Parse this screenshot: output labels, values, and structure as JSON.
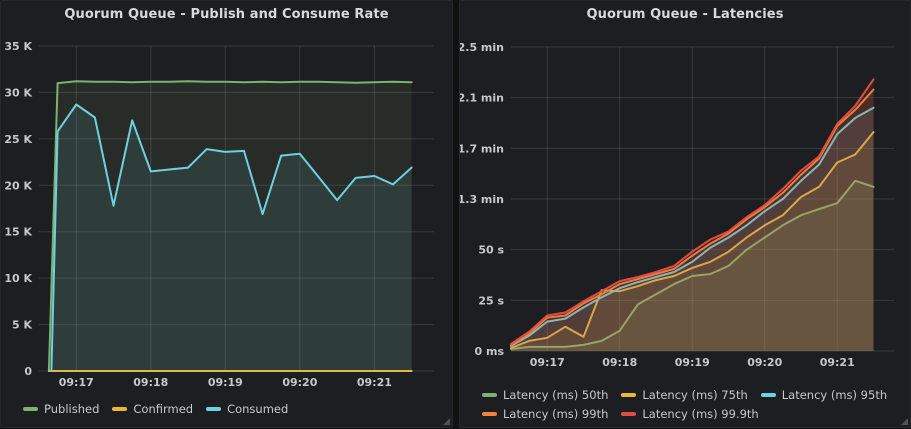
{
  "panels": [
    {
      "title": "Quorum Queue - Publish and Consume Rate"
    },
    {
      "title": "Quorum Queue - Latencies"
    }
  ],
  "colors": {
    "green": "#7EB26D",
    "yellow": "#EAB839",
    "cyan": "#6ED0E0",
    "orange": "#EF843C",
    "red": "#E24D42",
    "panel_bg": "#1d1e21",
    "grid": "rgba(255,255,255,0.12)",
    "tick_text": "#c7c8c9"
  },
  "chart_data": [
    {
      "type": "area",
      "title": "Quorum Queue - Publish and Consume Rate",
      "x_unit": "seconds offset within visible window",
      "y_unit": "messages/s",
      "x_tick_labels": [
        "09:17",
        "09:18",
        "09:19",
        "09:20",
        "09:21"
      ],
      "x_tick_t": [
        30,
        90,
        150,
        210,
        270
      ],
      "y_tick_labels": [
        "0",
        "5 K",
        "10 K",
        "15 K",
        "20 K",
        "25 K",
        "30 K",
        "35 K"
      ],
      "y_tick_values": [
        0,
        5000,
        10000,
        15000,
        20000,
        25000,
        30000,
        35000
      ],
      "x_domain": [
        0,
        318
      ],
      "y_domain": [
        0,
        35000
      ],
      "grid": true,
      "legend_position": "bottom",
      "series": [
        {
          "name": "Published",
          "color": "#7EB26D",
          "fill_opacity": 0.1,
          "t": [
            8,
            15,
            30,
            45,
            60,
            75,
            90,
            105,
            120,
            135,
            150,
            165,
            180,
            195,
            210,
            225,
            240,
            255,
            270,
            285,
            300
          ],
          "values": [
            0,
            31000,
            31200,
            31150,
            31150,
            31100,
            31150,
            31150,
            31200,
            31150,
            31150,
            31100,
            31150,
            31100,
            31150,
            31150,
            31100,
            31050,
            31100,
            31150,
            31100
          ]
        },
        {
          "name": "Confirmed",
          "color": "#EAB839",
          "fill_opacity": 0.1,
          "t": [
            8,
            150,
            300
          ],
          "values": [
            0,
            0,
            0
          ]
        },
        {
          "name": "Consumed",
          "color": "#6ED0E0",
          "fill_opacity": 0.1,
          "t": [
            10,
            15,
            30,
            45,
            60,
            75,
            90,
            105,
            120,
            135,
            150,
            165,
            180,
            195,
            210,
            225,
            240,
            255,
            270,
            285,
            300
          ],
          "values": [
            0,
            25800,
            28700,
            27300,
            17800,
            27000,
            21500,
            21700,
            21900,
            23900,
            23600,
            23700,
            16900,
            23200,
            23400,
            20900,
            18400,
            20800,
            21000,
            20100,
            21900
          ]
        }
      ]
    },
    {
      "type": "area",
      "title": "Quorum Queue - Latencies",
      "x_unit": "seconds offset within visible window",
      "y_unit": "latency (seconds, axis labeled ms/s/min)",
      "x_tick_labels": [
        "09:17",
        "09:18",
        "09:19",
        "09:20",
        "09:21"
      ],
      "x_tick_t": [
        30,
        90,
        150,
        210,
        270
      ],
      "y_tick_labels": [
        "0 ms",
        "25 s",
        "50 s",
        "1.3 min",
        "1.7 min",
        "2.1 min",
        "2.5 min"
      ],
      "y_tick_values": [
        0,
        25,
        50,
        75,
        100,
        125,
        150
      ],
      "x_domain": [
        0,
        317
      ],
      "y_domain": [
        0,
        150
      ],
      "grid": true,
      "legend_position": "bottom",
      "series": [
        {
          "name": "Latency (ms) 50th",
          "color": "#7EB26D",
          "fill_opacity": 0.12,
          "t": [
            0,
            15,
            30,
            45,
            60,
            75,
            90,
            105,
            120,
            135,
            150,
            165,
            180,
            195,
            210,
            225,
            240,
            255,
            270,
            285,
            300
          ],
          "values": [
            1,
            2,
            2,
            2,
            3,
            5,
            10,
            23,
            28,
            33,
            37,
            38,
            42,
            50,
            56,
            62,
            67,
            70,
            73,
            84,
            81
          ]
        },
        {
          "name": "Latency (ms) 75th",
          "color": "#EAB839",
          "fill_opacity": 0.12,
          "t": [
            0,
            15,
            30,
            45,
            60,
            75,
            90,
            105,
            120,
            135,
            150,
            165,
            180,
            195,
            210,
            225,
            240,
            255,
            270,
            285,
            300
          ],
          "values": [
            1.5,
            5,
            6.5,
            12,
            7,
            30,
            29.5,
            32,
            35,
            37,
            41,
            44,
            49,
            56,
            62,
            67,
            76,
            81,
            93,
            97,
            108
          ]
        },
        {
          "name": "Latency (ms) 95th",
          "color": "#6ED0E0",
          "fill_opacity": 0.12,
          "t": [
            0,
            15,
            30,
            45,
            60,
            75,
            90,
            105,
            120,
            135,
            150,
            165,
            180,
            195,
            210,
            225,
            240,
            255,
            270,
            285,
            300
          ],
          "values": [
            2.5,
            7.5,
            14.5,
            16,
            21.5,
            26.5,
            31,
            34,
            36.5,
            39,
            44,
            51,
            56,
            62,
            69,
            75,
            84,
            92,
            107,
            115,
            120
          ]
        },
        {
          "name": "Latency (ms) 99th",
          "color": "#EF843C",
          "fill_opacity": 0.12,
          "t": [
            0,
            15,
            30,
            45,
            60,
            75,
            90,
            105,
            120,
            135,
            150,
            165,
            180,
            195,
            210,
            225,
            240,
            255,
            270,
            285,
            300
          ],
          "values": [
            3,
            8.5,
            16.5,
            17.5,
            23.5,
            28,
            33,
            35.5,
            38,
            40.5,
            47,
            53,
            58,
            65,
            71,
            78,
            87,
            95,
            111,
            119,
            129
          ]
        },
        {
          "name": "Latency (ms) 99.9th",
          "color": "#E24D42",
          "fill_opacity": 0.12,
          "t": [
            0,
            15,
            30,
            45,
            60,
            75,
            90,
            105,
            120,
            135,
            150,
            165,
            180,
            195,
            210,
            225,
            240,
            255,
            270,
            285,
            300
          ],
          "values": [
            3.5,
            9.5,
            17.5,
            19,
            24.5,
            29.5,
            34.5,
            36.5,
            39,
            42,
            49,
            55,
            59,
            66,
            72,
            80,
            89,
            96,
            112,
            121,
            134
          ]
        }
      ]
    }
  ]
}
